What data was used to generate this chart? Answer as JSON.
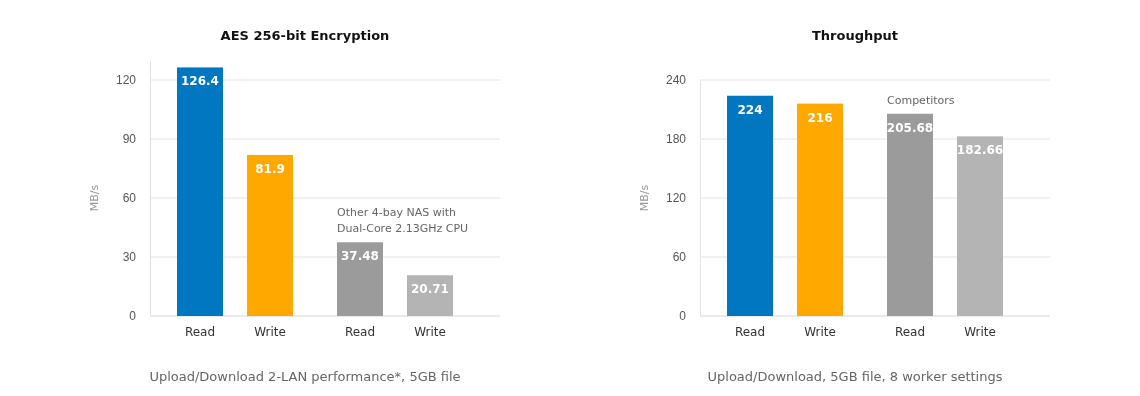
{
  "chart_data": [
    {
      "type": "bar",
      "title": "AES 256-bit Encryption",
      "ylabel": "MB/s",
      "xlabel": "Upload/Download 2-LAN performance*, 5GB file",
      "categories": [
        "Read",
        "Write",
        "Read",
        "Write"
      ],
      "values": [
        126.4,
        81.9,
        37.48,
        20.71
      ],
      "colors": [
        "#0077c0",
        "#ffa800",
        "#9b9b9b",
        "#b4b4b4"
      ],
      "ylim": [
        0,
        130
      ],
      "yticks": [
        0,
        30,
        60,
        90,
        120
      ],
      "grid": "y",
      "data_labels": true,
      "annotations": [
        "Other 4-bay NAS with\nDual-Core 2.13GHz CPU"
      ]
    },
    {
      "type": "bar",
      "title": "Throughput",
      "ylabel": "MB/s",
      "xlabel": "Upload/Download, 5GB file, 8 worker settings",
      "categories": [
        "Read",
        "Write",
        "Read",
        "Write"
      ],
      "values": [
        224,
        216,
        205.68,
        182.66
      ],
      "colors": [
        "#0077c0",
        "#ffa800",
        "#9b9b9b",
        "#b4b4b4"
      ],
      "ylim": [
        0,
        240
      ],
      "yticks": [
        0,
        60,
        120,
        180,
        240
      ],
      "grid": "y",
      "data_labels": true,
      "annotations": [
        "Competitors"
      ]
    }
  ]
}
